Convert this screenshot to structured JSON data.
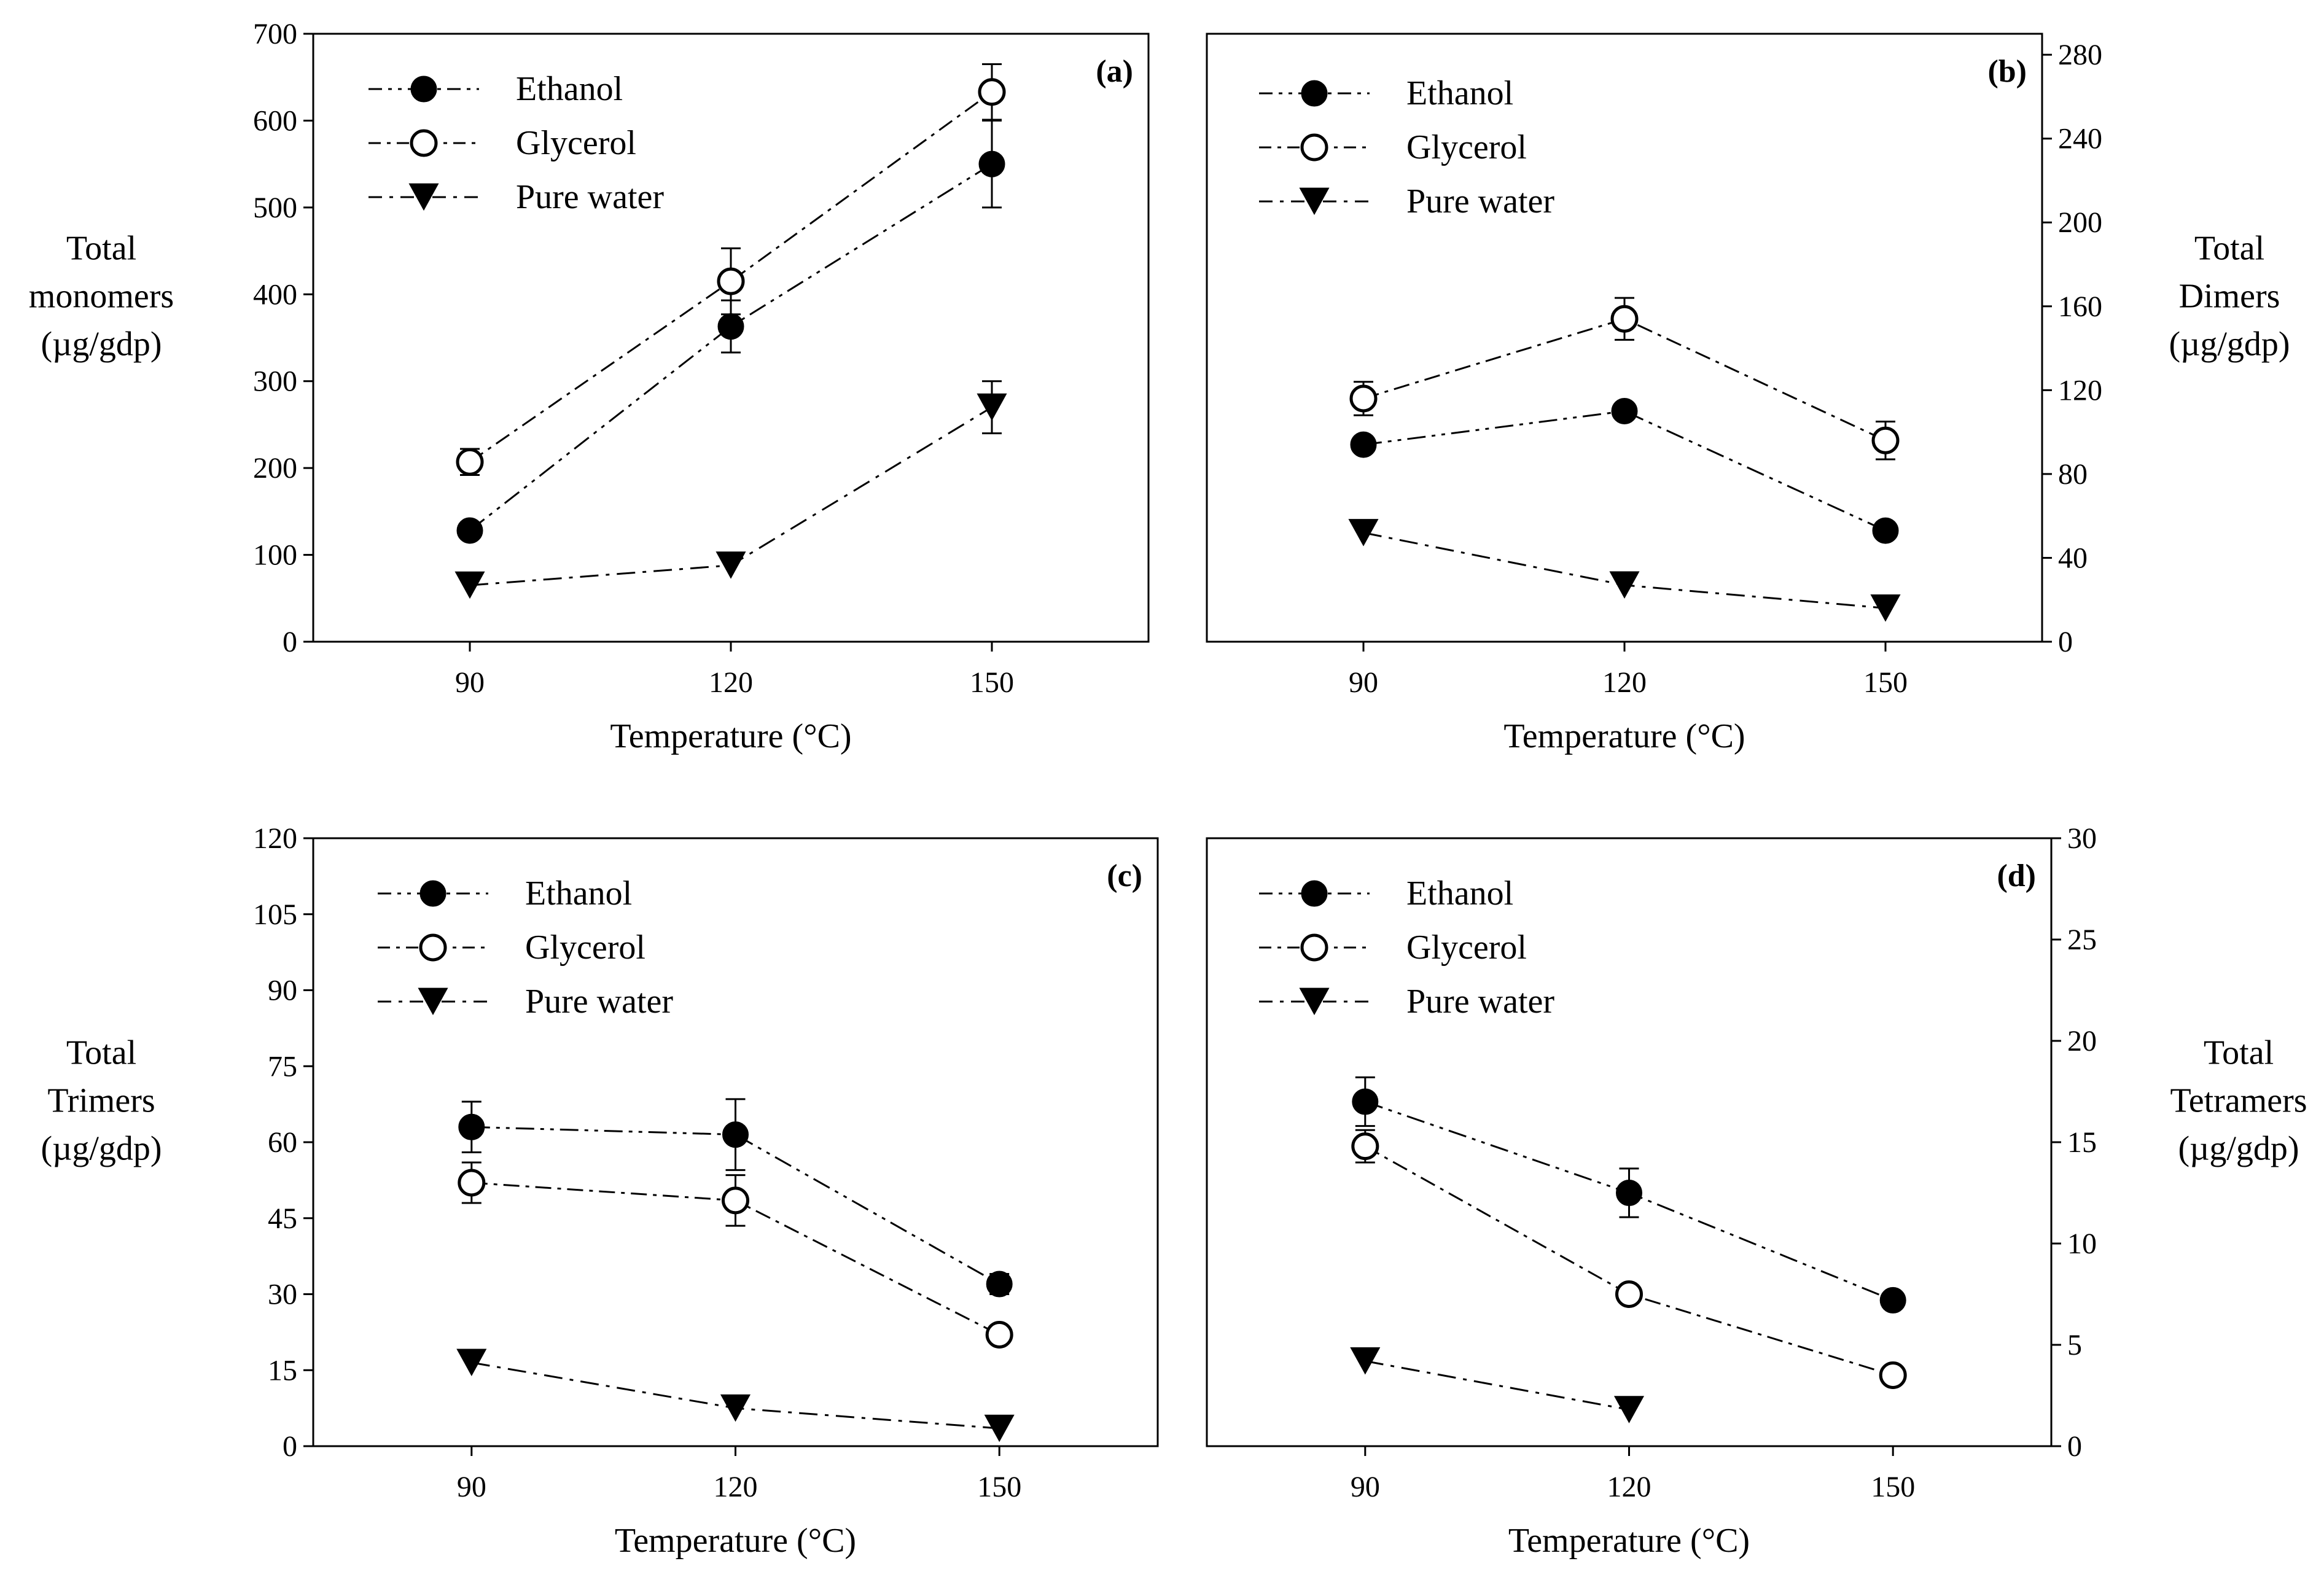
{
  "chart_data": [
    {
      "type": "line",
      "panel_label": "(a)",
      "x": [
        90,
        120,
        150
      ],
      "x_tick_labels": [
        "90",
        "120",
        "150"
      ],
      "xlabel": "Temperature (°C)",
      "ylabel_lines": [
        "Total",
        "monomers",
        "(µg/gdp)"
      ],
      "y_axis_side": "left",
      "ylim": [
        0,
        700
      ],
      "y_ticks": [
        0,
        100,
        200,
        300,
        400,
        500,
        600,
        700
      ],
      "series": [
        {
          "name": "Ethanol",
          "marker": "filled-circle",
          "values": [
            128,
            363,
            550
          ],
          "errors": [
            null,
            30,
            50
          ]
        },
        {
          "name": "Glycerol",
          "marker": "open-circle",
          "values": [
            207,
            415,
            633
          ],
          "errors": [
            15,
            38,
            32
          ]
        },
        {
          "name": "Pure water",
          "marker": "filled-triangle-down",
          "values": [
            65,
            88,
            270
          ],
          "errors": [
            null,
            null,
            30
          ]
        }
      ]
    },
    {
      "type": "line",
      "panel_label": "(b)",
      "x": [
        90,
        120,
        150
      ],
      "x_tick_labels": [
        "90",
        "120",
        "150"
      ],
      "xlabel": "Temperature (°C)",
      "ylabel_lines": [
        "Total",
        "Dimers",
        "(µg/gdp)"
      ],
      "y_axis_side": "right",
      "ylim": [
        0,
        290
      ],
      "y_ticks": [
        0,
        40,
        80,
        120,
        160,
        200,
        240,
        280
      ],
      "series": [
        {
          "name": "Ethanol",
          "marker": "filled-circle",
          "values": [
            94,
            110,
            53
          ],
          "errors": [
            null,
            null,
            null
          ]
        },
        {
          "name": "Glycerol",
          "marker": "open-circle",
          "values": [
            116,
            154,
            96
          ],
          "errors": [
            8,
            10,
            9
          ]
        },
        {
          "name": "Pure water",
          "marker": "filled-triangle-down",
          "values": [
            52,
            27,
            16
          ],
          "errors": [
            null,
            null,
            null
          ]
        }
      ]
    },
    {
      "type": "line",
      "panel_label": "(c)",
      "x": [
        90,
        120,
        150
      ],
      "x_tick_labels": [
        "90",
        "120",
        "150"
      ],
      "xlabel": "Temperature (°C)",
      "ylabel_lines": [
        "Total",
        "Trimers",
        "(µg/gdp)"
      ],
      "y_axis_side": "left",
      "ylim": [
        0,
        120
      ],
      "y_ticks": [
        0,
        15,
        30,
        45,
        60,
        75,
        90,
        105,
        120
      ],
      "series": [
        {
          "name": "Ethanol",
          "marker": "filled-circle",
          "values": [
            63,
            61.5,
            32
          ],
          "errors": [
            5,
            7,
            2
          ]
        },
        {
          "name": "Glycerol",
          "marker": "open-circle",
          "values": [
            52,
            48.5,
            22
          ],
          "errors": [
            4,
            5,
            null
          ]
        },
        {
          "name": "Pure water",
          "marker": "filled-triangle-down",
          "values": [
            16.5,
            7.5,
            3.5
          ],
          "errors": [
            null,
            null,
            null
          ]
        }
      ]
    },
    {
      "type": "line",
      "panel_label": "(d)",
      "x": [
        90,
        120,
        150
      ],
      "x_tick_labels": [
        "90",
        "120",
        "150"
      ],
      "xlabel": "Temperature (°C)",
      "ylabel_lines": [
        "Total",
        "Tetramers",
        "(µg/gdp)"
      ],
      "y_axis_side": "right",
      "ylim": [
        0,
        30
      ],
      "y_ticks": [
        0,
        5,
        10,
        15,
        20,
        25,
        30
      ],
      "series": [
        {
          "name": "Ethanol",
          "marker": "filled-circle",
          "values": [
            17,
            12.5,
            7.2
          ],
          "errors": [
            1.2,
            1.2,
            null
          ]
        },
        {
          "name": "Glycerol",
          "marker": "open-circle",
          "values": [
            14.8,
            7.5,
            3.5
          ],
          "errors": [
            0.8,
            null,
            null
          ]
        },
        {
          "name": "Pure water",
          "marker": "filled-triangle-down",
          "values": [
            4.2,
            1.8,
            null
          ],
          "errors": [
            null,
            null,
            null
          ]
        }
      ]
    }
  ],
  "colors": {
    "ink": "#000000",
    "background": "#ffffff"
  }
}
